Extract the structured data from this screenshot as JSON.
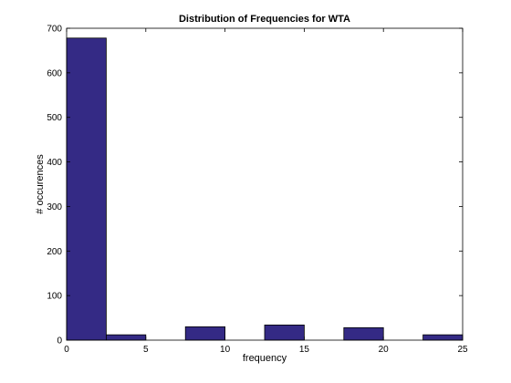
{
  "chart_data": {
    "type": "bar",
    "title": "Distribution of Frequencies for WTA",
    "xlabel": "frequency",
    "ylabel": "# occurences",
    "xlim": [
      0,
      25
    ],
    "ylim": [
      0,
      700
    ],
    "xticks": [
      0,
      5,
      10,
      15,
      20,
      25
    ],
    "yticks": [
      0,
      100,
      200,
      300,
      400,
      500,
      600,
      700
    ],
    "bins": [
      {
        "start": 0,
        "end": 2.5,
        "value": 678
      },
      {
        "start": 2.5,
        "end": 5,
        "value": 12
      },
      {
        "start": 5,
        "end": 7.5,
        "value": 0
      },
      {
        "start": 7.5,
        "end": 10,
        "value": 30
      },
      {
        "start": 10,
        "end": 12.5,
        "value": 0
      },
      {
        "start": 12.5,
        "end": 15,
        "value": 34
      },
      {
        "start": 15,
        "end": 17.5,
        "value": 0
      },
      {
        "start": 17.5,
        "end": 20,
        "value": 28
      },
      {
        "start": 20,
        "end": 22.5,
        "value": 0
      },
      {
        "start": 22.5,
        "end": 25,
        "value": 12
      }
    ],
    "bar_color": "#342a85",
    "bar_edge_color": "#000000",
    "grid": false,
    "legend": false
  }
}
